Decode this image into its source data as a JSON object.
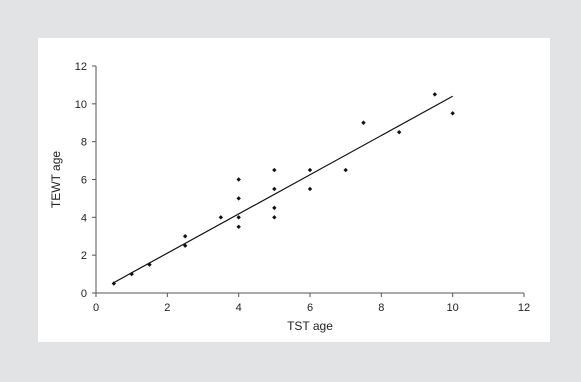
{
  "chart_data": {
    "type": "scatter",
    "title": "",
    "xlabel": "TST age",
    "ylabel": "TEWT age",
    "xlim": [
      0,
      12
    ],
    "ylim": [
      0,
      12
    ],
    "xticks": [
      0,
      2,
      4,
      6,
      8,
      10,
      12
    ],
    "yticks": [
      0,
      2,
      4,
      6,
      8,
      10,
      12
    ],
    "grid": false,
    "legend": "none",
    "point_color": "#111111",
    "line_color": "#111111",
    "points": [
      {
        "x": 0.5,
        "y": 0.5
      },
      {
        "x": 1.0,
        "y": 1.0
      },
      {
        "x": 1.5,
        "y": 1.5
      },
      {
        "x": 2.5,
        "y": 2.5
      },
      {
        "x": 2.5,
        "y": 3.0
      },
      {
        "x": 3.5,
        "y": 4.0
      },
      {
        "x": 4.0,
        "y": 3.5
      },
      {
        "x": 4.0,
        "y": 4.0
      },
      {
        "x": 4.0,
        "y": 5.0
      },
      {
        "x": 4.0,
        "y": 6.0
      },
      {
        "x": 5.0,
        "y": 4.0
      },
      {
        "x": 5.0,
        "y": 4.5
      },
      {
        "x": 5.0,
        "y": 5.5
      },
      {
        "x": 5.0,
        "y": 6.5
      },
      {
        "x": 6.0,
        "y": 5.5
      },
      {
        "x": 6.0,
        "y": 6.5
      },
      {
        "x": 7.0,
        "y": 6.5
      },
      {
        "x": 7.5,
        "y": 9.0
      },
      {
        "x": 8.5,
        "y": 8.5
      },
      {
        "x": 9.5,
        "y": 10.5
      },
      {
        "x": 10.0,
        "y": 9.5
      }
    ],
    "trendline": {
      "x": [
        0.5,
        10.0
      ],
      "y": [
        0.55,
        10.4
      ]
    }
  }
}
